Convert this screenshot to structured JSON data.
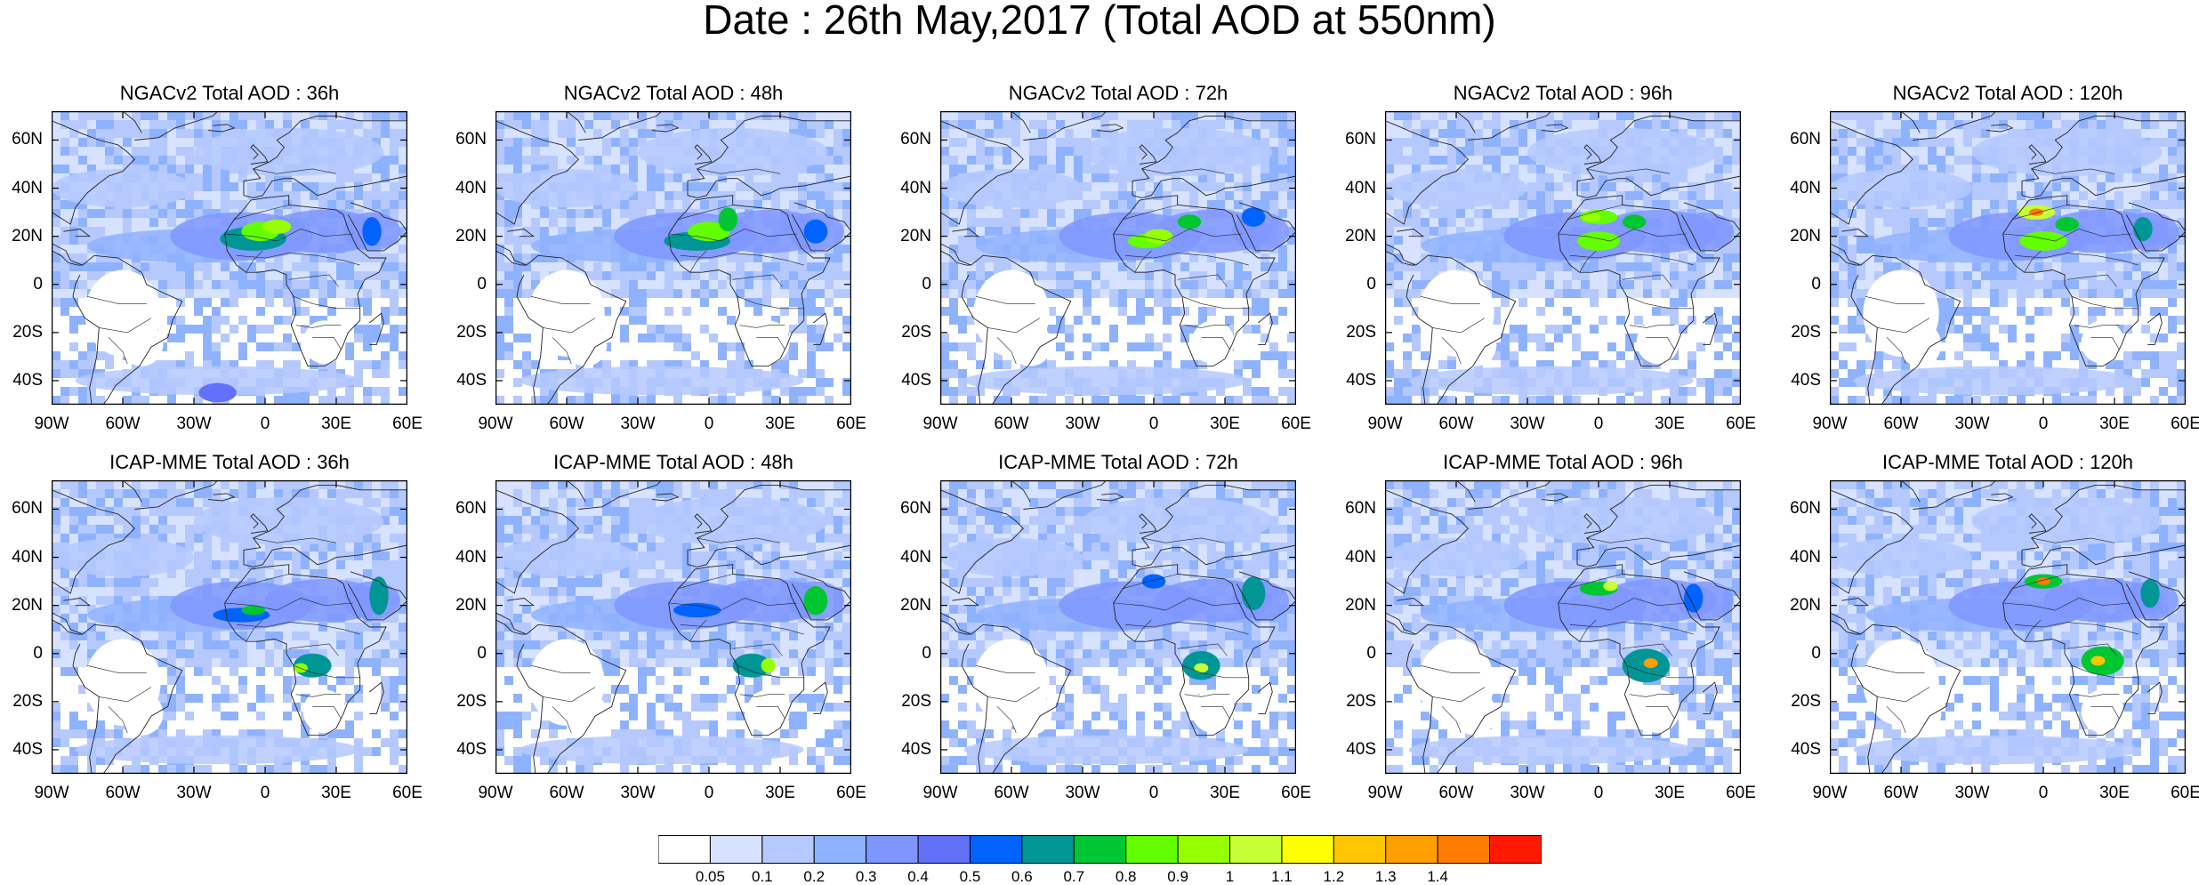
{
  "title": "Date : 26th May,2017 (Total AOD at 550nm)",
  "panels": [
    {
      "label": "NGACv2 Total AOD : 36h"
    },
    {
      "label": "NGACv2 Total AOD : 48h"
    },
    {
      "label": "NGACv2 Total AOD : 72h"
    },
    {
      "label": "NGACv2 Total AOD : 96h"
    },
    {
      "label": "NGACv2 Total AOD : 120h"
    },
    {
      "label": "ICAP-MME Total AOD : 36h"
    },
    {
      "label": "ICAP-MME Total AOD : 48h"
    },
    {
      "label": "ICAP-MME Total AOD : 72h"
    },
    {
      "label": "ICAP-MME Total AOD : 96h"
    },
    {
      "label": "ICAP-MME Total AOD : 120h"
    }
  ],
  "axes": {
    "lon_ticks": [
      "90W",
      "60W",
      "30W",
      "0",
      "30E",
      "60E"
    ],
    "lat_ticks": [
      "60N",
      "40N",
      "20N",
      "0",
      "20S",
      "40S"
    ],
    "lon_range": [
      -90,
      60
    ],
    "lat_range": [
      -50,
      72
    ]
  },
  "colorbar": {
    "labels": [
      "0.05",
      "0.1",
      "0.2",
      "0.3",
      "0.4",
      "0.5",
      "0.6",
      "0.7",
      "0.8",
      "0.9",
      "1",
      "1.1",
      "1.2",
      "1.3",
      "1.4"
    ],
    "colors": [
      "#ffffff",
      "#d6e2ff",
      "#b5c9ff",
      "#8fb2ff",
      "#7f96ff",
      "#6370f8",
      "#0063ff",
      "#009696",
      "#00c633",
      "#63ff00",
      "#96ff00",
      "#c6ff33",
      "#ffff00",
      "#ffc600",
      "#ffa000",
      "#ff7c00",
      "#ff1900"
    ]
  }
}
